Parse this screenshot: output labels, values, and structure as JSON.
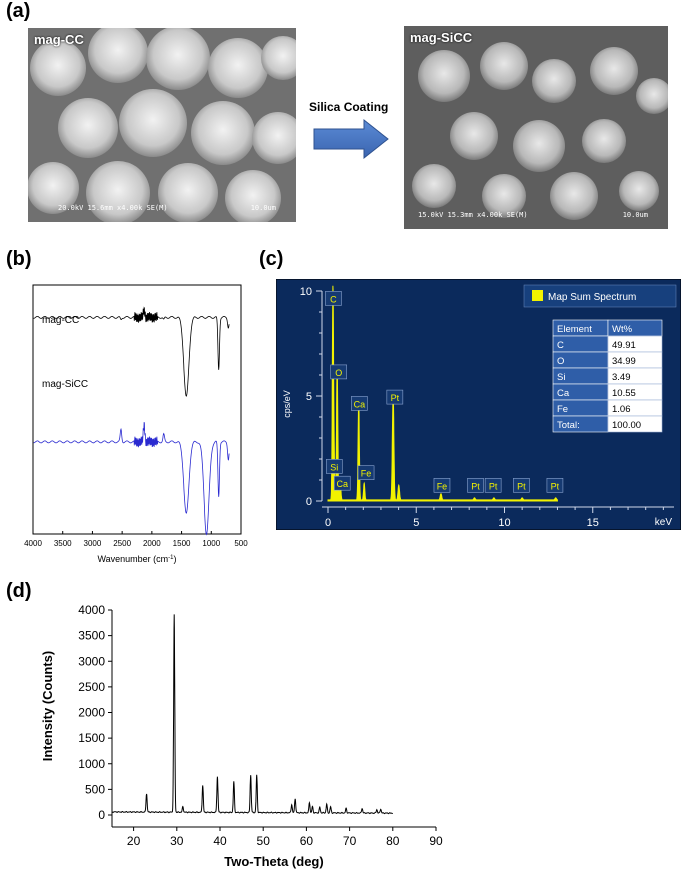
{
  "panels": {
    "a": {
      "label": "(a)",
      "left_image": {
        "title": "mag-CC",
        "meta": "20.0kV 15.6mm x4.00k SE(M)",
        "scale": "10.0um"
      },
      "right_image": {
        "title": "mag-SiCC",
        "meta": "15.0kV 15.3mm x4.00k SE(M)",
        "scale": "10.0um"
      },
      "arrow_label": "Silica Coating",
      "arrow_color": "#4472c4"
    },
    "b": {
      "label": "(b)",
      "xlabel": "Wavenumber (cm",
      "xlabel_sup": "-1",
      "xlabel_end": ")",
      "x_ticks": [
        "4000",
        "3500",
        "3000",
        "2500",
        "2000",
        "1500",
        "1000",
        "500"
      ],
      "series": [
        {
          "name": "mag-CC",
          "color": "#000000"
        },
        {
          "name": "mag-SiCC",
          "color": "#2a2ad0"
        }
      ]
    },
    "c": {
      "label": "(c)",
      "background": "#0b2a5c",
      "spectrum_color": "#f2f200",
      "ylabel": "cps/eV",
      "xlabel": "keV",
      "y_ticks": [
        "0",
        "5",
        "10"
      ],
      "x_ticks": [
        "0",
        "5",
        "10",
        "15"
      ],
      "legend": "Map Sum Spectrum",
      "peak_labels": [
        "C",
        "O",
        "Si",
        "Ca",
        "Ca",
        "Fe",
        "Pt",
        "Fe",
        "Pt",
        "Pt",
        "Pt",
        "Pt"
      ],
      "table": {
        "headers": [
          "Element",
          "Wt%"
        ],
        "rows": [
          [
            "C",
            "49.91"
          ],
          [
            "O",
            "34.99"
          ],
          [
            "Si",
            "3.49"
          ],
          [
            "Ca",
            "10.55"
          ],
          [
            "Fe",
            "1.06"
          ],
          [
            "Total:",
            "100.00"
          ]
        ]
      }
    },
    "d": {
      "label": "(d)",
      "xlabel": "Two-Theta (deg)",
      "ylabel": "Intensity (Counts)",
      "x_ticks": [
        "20",
        "30",
        "40",
        "50",
        "60",
        "70",
        "80",
        "90"
      ],
      "y_ticks": [
        "0",
        "500",
        "1000",
        "1500",
        "2000",
        "2500",
        "3000",
        "3500",
        "4000"
      ]
    }
  },
  "chart_data": [
    {
      "type": "line",
      "panel": "d",
      "xlabel": "Two-Theta (deg)",
      "ylabel": "Intensity (Counts)",
      "xlim": [
        15,
        90
      ],
      "ylim": [
        0,
        4000
      ],
      "baseline": 60,
      "range": [
        15,
        80
      ],
      "peaks": [
        {
          "x": 23.0,
          "y": 360
        },
        {
          "x": 29.4,
          "y": 3850
        },
        {
          "x": 31.4,
          "y": 110
        },
        {
          "x": 36.0,
          "y": 530
        },
        {
          "x": 39.4,
          "y": 700
        },
        {
          "x": 43.2,
          "y": 600
        },
        {
          "x": 47.1,
          "y": 730
        },
        {
          "x": 48.5,
          "y": 730
        },
        {
          "x": 56.6,
          "y": 160
        },
        {
          "x": 57.4,
          "y": 280
        },
        {
          "x": 60.7,
          "y": 200
        },
        {
          "x": 61.4,
          "y": 120
        },
        {
          "x": 63.1,
          "y": 110
        },
        {
          "x": 64.7,
          "y": 170
        },
        {
          "x": 65.6,
          "y": 120
        },
        {
          "x": 69.2,
          "y": 90
        },
        {
          "x": 72.9,
          "y": 90
        },
        {
          "x": 76.3,
          "y": 70
        },
        {
          "x": 77.2,
          "y": 80
        }
      ]
    },
    {
      "type": "line",
      "panel": "c",
      "xlabel": "keV",
      "ylabel": "cps/eV",
      "xlim": [
        0,
        20
      ],
      "ylim": [
        0,
        10
      ],
      "peaks": [
        {
          "x": 0.28,
          "y": 10.0,
          "label": "C"
        },
        {
          "x": 0.52,
          "y": 6.4,
          "label": "O"
        },
        {
          "x": 0.35,
          "y": 1.4,
          "label": "Ca"
        },
        {
          "x": 0.7,
          "y": 0.7,
          "label": "Fe"
        },
        {
          "x": 1.74,
          "y": 4.8,
          "label": "Si"
        },
        {
          "x": 2.05,
          "y": 0.8,
          "label": "Pt"
        },
        {
          "x": 3.69,
          "y": 5.0,
          "label": "Ca"
        },
        {
          "x": 4.01,
          "y": 0.7
        },
        {
          "x": 6.4,
          "y": 0.3,
          "label": "Fe"
        },
        {
          "x": 8.3,
          "y": 0.1,
          "label": "Pt"
        },
        {
          "x": 9.4,
          "y": 0.1,
          "label": "Pt"
        },
        {
          "x": 11.0,
          "y": 0.1,
          "label": "Pt"
        },
        {
          "x": 12.9,
          "y": 0.1,
          "label": "Pt"
        }
      ]
    },
    {
      "type": "line",
      "panel": "b",
      "xlabel": "Wavenumber (cm-1)",
      "xlim": [
        4000,
        500
      ],
      "series": [
        {
          "name": "mag-CC",
          "baseline": 0.87,
          "bands": [
            {
              "x": 2520,
              "y": 0.86
            },
            {
              "x": 2130,
              "y": 0.9
            },
            {
              "x": 1800,
              "y": 0.86
            },
            {
              "x": 1420,
              "y": 0.55
            },
            {
              "x": 875,
              "y": 0.66
            },
            {
              "x": 712,
              "y": 0.83
            }
          ]
        },
        {
          "name": "mag-SiCC",
          "baseline": 0.37,
          "bands": [
            {
              "x": 2520,
              "y": 0.42
            },
            {
              "x": 2130,
              "y": 0.44
            },
            {
              "x": 1800,
              "y": 0.4
            },
            {
              "x": 1420,
              "y": 0.08
            },
            {
              "x": 1080,
              "y": 0.0
            },
            {
              "x": 875,
              "y": 0.15
            },
            {
              "x": 712,
              "y": 0.3
            }
          ]
        }
      ]
    }
  ]
}
